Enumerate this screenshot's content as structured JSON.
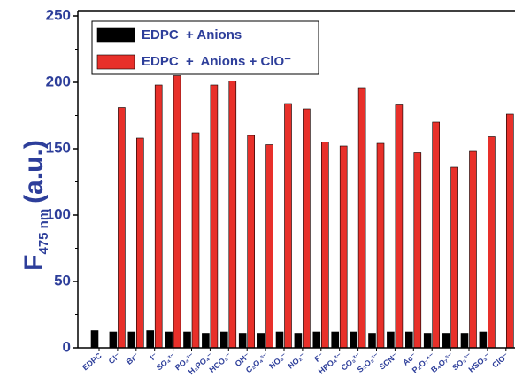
{
  "chart_data": {
    "type": "bar",
    "ylabel": {
      "main": "F",
      "sub": "475 nm",
      "unit": "(a.u.)"
    },
    "categories": [
      "EDPC",
      "Cl⁻",
      "Br⁻",
      "I⁻",
      "SO₄²⁻",
      "PO₄³⁻",
      "H₂PO₄⁻",
      "HCO₃⁻",
      "OH⁻",
      "C₂O₄²⁻",
      "NO₃⁻",
      "NO₂⁻",
      "F⁻",
      "HPO₄²⁻",
      "CO₃²⁻",
      "S₂O₃²⁻",
      "SCN⁻",
      "Ac⁻",
      "P₂O₇⁴⁻",
      "B₄O₇²⁻",
      "SO₃²⁻",
      "HSO₃⁻",
      "ClO⁻"
    ],
    "series": [
      {
        "name": "EDPC  + Anions",
        "color": "#000000",
        "values": [
          13,
          12,
          12,
          13,
          12,
          12,
          11,
          12,
          11,
          11,
          12,
          11,
          12,
          12,
          12,
          11,
          12,
          12,
          11,
          11,
          11,
          12,
          null
        ]
      },
      {
        "name": "EDPC  +  Anions + ClO⁻",
        "color": "#e8302a",
        "values": [
          null,
          181,
          158,
          198,
          205,
          162,
          198,
          201,
          160,
          153,
          184,
          180,
          155,
          152,
          196,
          154,
          183,
          147,
          170,
          136,
          148,
          159,
          176
        ]
      }
    ],
    "ylim": [
      0,
      250
    ],
    "yticks": [
      0,
      50,
      100,
      150,
      200,
      250
    ],
    "legend": "upper left"
  }
}
